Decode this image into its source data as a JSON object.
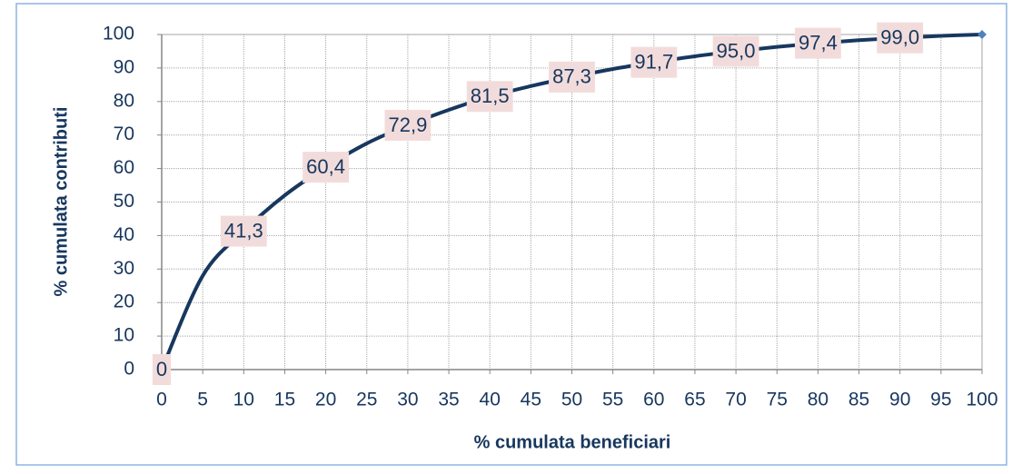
{
  "chart_data": {
    "type": "line",
    "x_label": "% cumulata beneficiari",
    "y_label": "% cumulata contributi",
    "x": [
      0,
      5,
      10,
      15,
      20,
      25,
      30,
      35,
      40,
      45,
      50,
      55,
      60,
      65,
      70,
      75,
      80,
      85,
      90,
      95,
      100
    ],
    "series": [
      {
        "name": "% cumulata contributi",
        "color": "#17375e",
        "values": [
          0,
          28,
          41.3,
          52,
          60.4,
          67.5,
          72.9,
          77.5,
          81.5,
          84.6,
          87.3,
          89.7,
          91.7,
          93.5,
          95.0,
          96.3,
          97.4,
          98.3,
          99.0,
          99.6,
          100
        ],
        "value_labels": [
          "0",
          null,
          "41,3",
          null,
          "60,4",
          null,
          "72,9",
          null,
          "81,5",
          null,
          "87,3",
          null,
          "91,7",
          null,
          "95,0",
          null,
          "97,4",
          null,
          "99,0",
          null,
          null
        ]
      }
    ],
    "xlim": [
      0,
      100
    ],
    "xticks": [
      0,
      5,
      10,
      15,
      20,
      25,
      30,
      35,
      40,
      45,
      50,
      55,
      60,
      65,
      70,
      75,
      80,
      85,
      90,
      95,
      100
    ],
    "ylim": [
      0,
      100
    ],
    "yticks": [
      0,
      10,
      20,
      30,
      40,
      50,
      60,
      70,
      80,
      90,
      100
    ],
    "grid": true
  }
}
